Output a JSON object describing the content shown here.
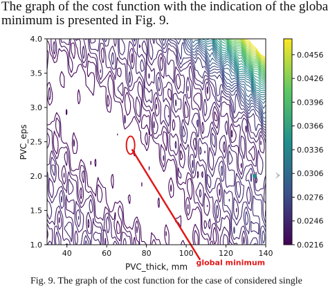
{
  "document": {
    "intro_line1": "The graph of the cost function with the indication of the global",
    "intro_line2": "minimum is presented in Fig. 9.",
    "caption": "Fig. 9. The graph of the cost function for the case of considered single"
  },
  "chart_data": {
    "type": "contour",
    "xlabel": "PVC_thick, mm",
    "ylabel": "PVC_eps",
    "xlim": [
      30,
      140
    ],
    "ylim": [
      1.0,
      4.0
    ],
    "xticks": [
      40,
      60,
      80,
      100,
      120,
      140
    ],
    "yticks": [
      1.0,
      1.5,
      2.0,
      2.5,
      3.0,
      3.5,
      4.0
    ],
    "colorbar": {
      "ticks": [
        0.0216,
        0.0246,
        0.0276,
        0.0306,
        0.0336,
        0.0366,
        0.0396,
        0.0426,
        0.0456
      ],
      "tick_labels": [
        "0.0216",
        "0.0246",
        "0.0276",
        "0.0306",
        "0.0336",
        "0.0366",
        "0.0396",
        "0.0426",
        "0.0456"
      ],
      "range": [
        0.0216,
        0.0476
      ],
      "colormap": "viridis"
    },
    "annotation": {
      "text": "global minimum",
      "point": {
        "x": 72,
        "y": 2.45
      },
      "color": "#e01818"
    },
    "colors": {
      "low": "#440154",
      "mid": "#21908c",
      "high": "#fde725",
      "marker": "#e01818"
    }
  }
}
